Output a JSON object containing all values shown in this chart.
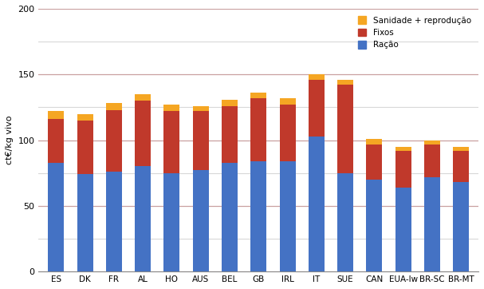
{
  "categories": [
    "ES",
    "DK",
    "FR",
    "AL",
    "HO",
    "AUS",
    "BEL",
    "GB",
    "IRL",
    "IT",
    "SUE",
    "CAN",
    "EUA-Iw",
    "BR-SC",
    "BR-MT"
  ],
  "racao": [
    83,
    74,
    76,
    80,
    75,
    77,
    83,
    84,
    84,
    103,
    75,
    70,
    64,
    72,
    68
  ],
  "fixos": [
    33,
    41,
    47,
    50,
    47,
    45,
    43,
    48,
    43,
    43,
    67,
    27,
    28,
    25,
    24
  ],
  "sanidade": [
    6,
    5,
    5,
    5,
    5,
    4,
    5,
    4,
    5,
    4,
    4,
    4,
    3,
    3,
    3
  ],
  "bar_color_racao": "#4472C4",
  "bar_color_fixos": "#C0392B",
  "bar_color_sanidade": "#F5A623",
  "ylabel": "ct€/kg vivo",
  "ylim": [
    0,
    200
  ],
  "yticks": [
    0,
    50,
    100,
    150,
    200
  ],
  "minor_yticks": [
    25,
    75,
    125,
    175
  ],
  "legend_labels": [
    "Sanidade + reprodução",
    "Fixos",
    "Ração"
  ],
  "grid_major_color": "#C9A0A0",
  "grid_minor_color": "#D8D8D8",
  "bg_color": "#FFFFFF",
  "figure_bg": "#FFFFFF"
}
